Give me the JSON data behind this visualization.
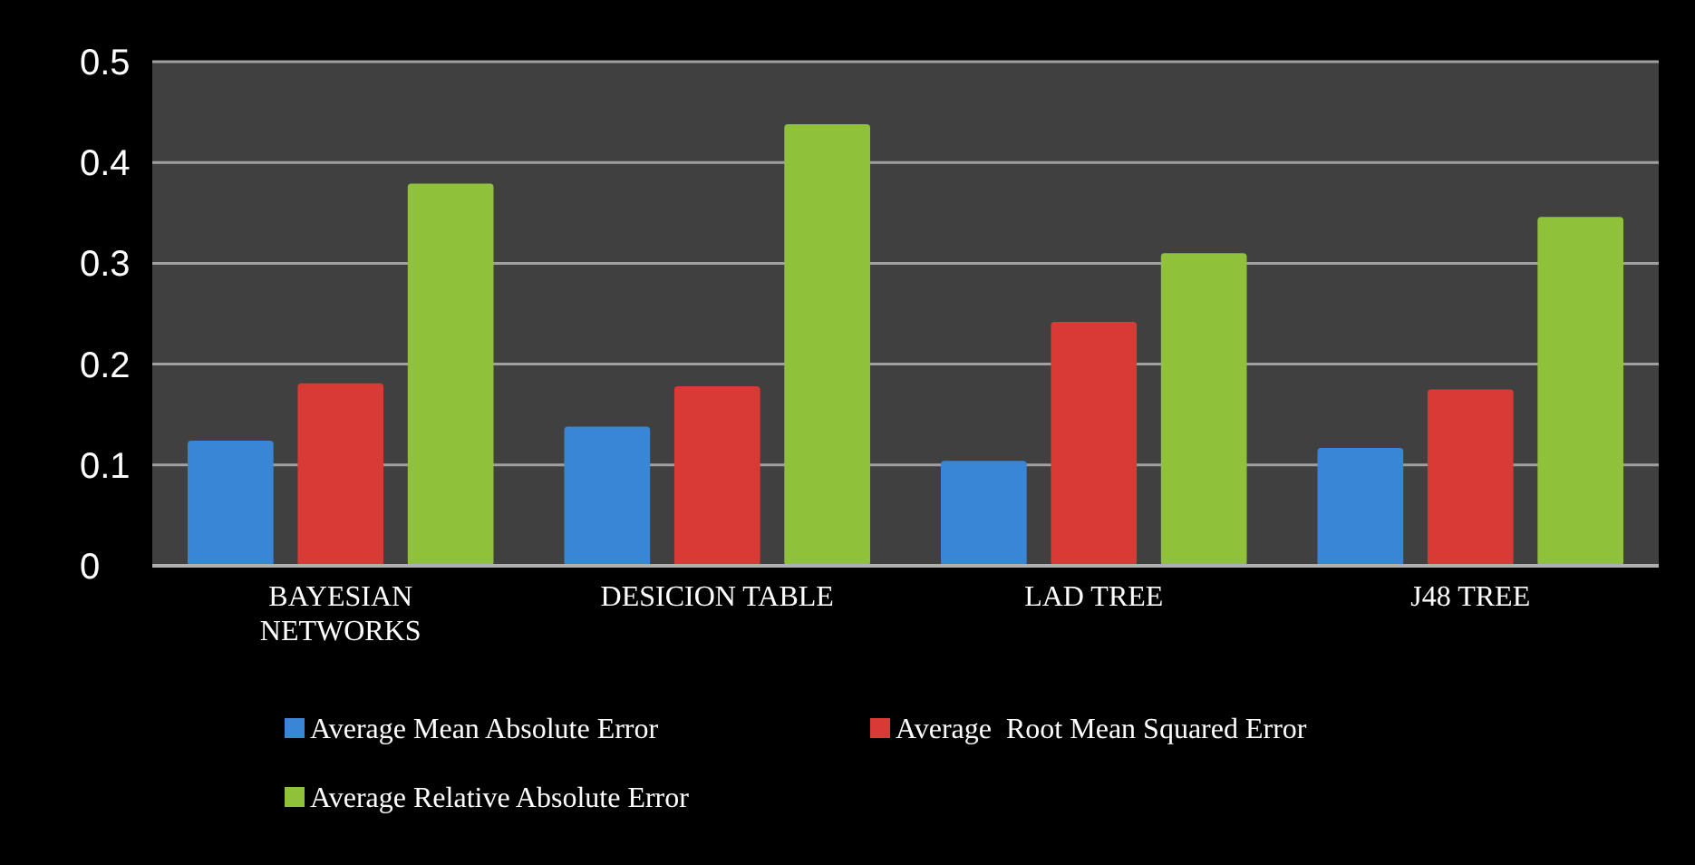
{
  "chart_data": {
    "type": "bar",
    "categories": [
      "BAYESIAN NETWORKS",
      "DESICION TABLE",
      "LAD TREE",
      "J48 TREE"
    ],
    "series": [
      {
        "name": "Average Mean Absolute Error",
        "color": "#3a86d6",
        "values": [
          0.124,
          0.138,
          0.104,
          0.117
        ]
      },
      {
        "name": "Average  Root Mean Squared Error",
        "color": "#d93a36",
        "values": [
          0.181,
          0.178,
          0.242,
          0.175
        ]
      },
      {
        "name": "Average Relative Absolute Error",
        "color": "#8fc23a",
        "values": [
          0.379,
          0.438,
          0.31,
          0.346
        ]
      }
    ],
    "ylim": [
      0,
      0.5
    ],
    "yticks": [
      0,
      0.1,
      0.2,
      0.3,
      0.4,
      0.5
    ],
    "grid": "y",
    "legend": "bottom"
  }
}
